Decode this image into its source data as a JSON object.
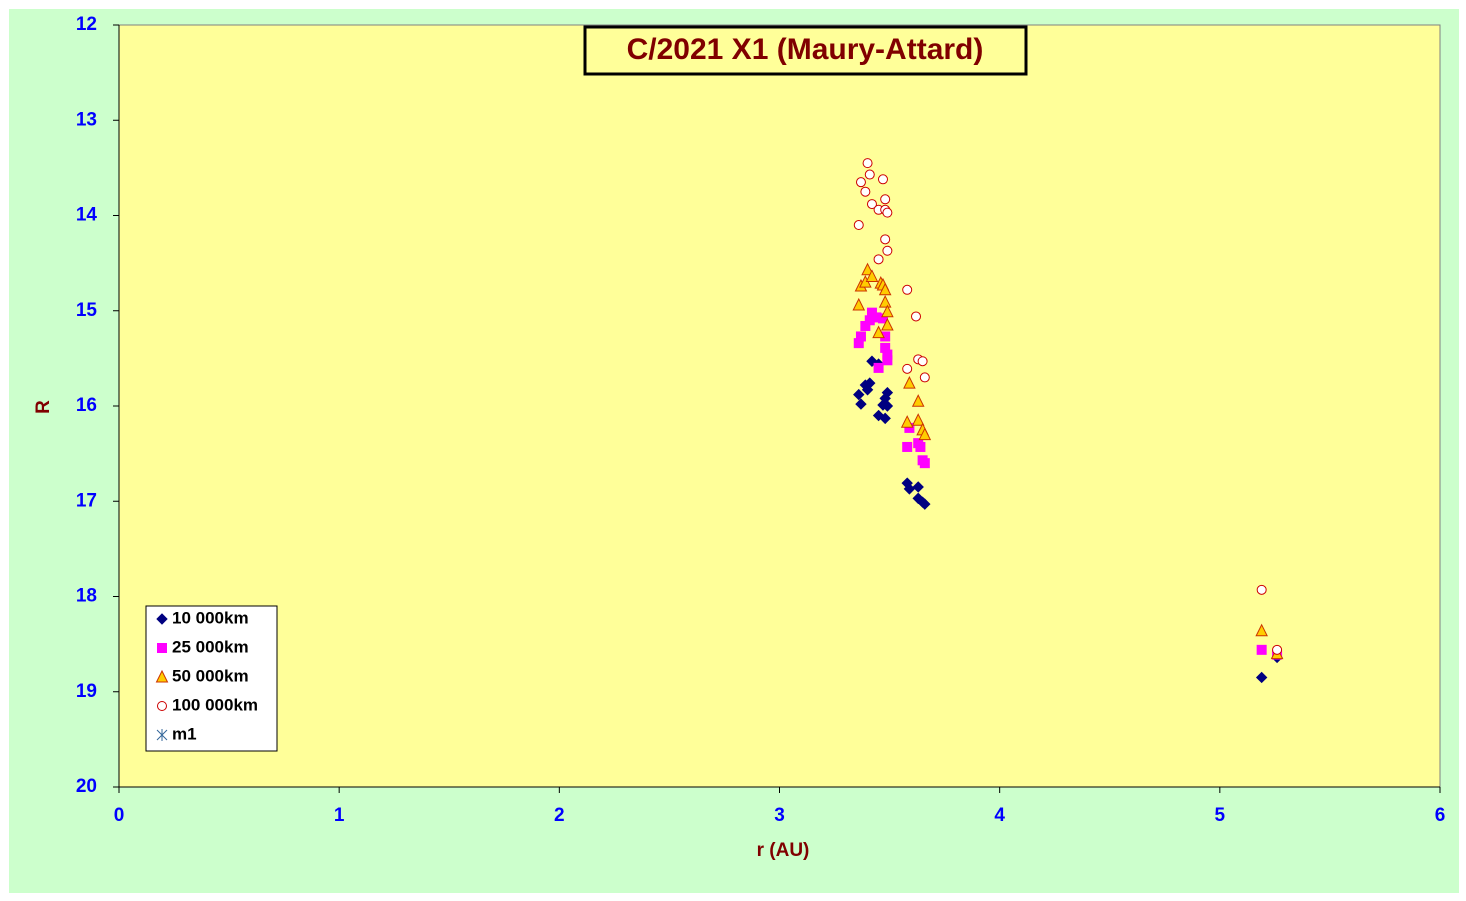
{
  "chart_data": {
    "type": "scatter",
    "title": "C/2021 X1 (Maury-Attard)",
    "x_label": "r (AU)",
    "y_label": "R",
    "xlim": [
      0,
      6
    ],
    "ylim": [
      12,
      20
    ],
    "y_reversed": true,
    "xticks": [
      0,
      1,
      2,
      3,
      4,
      5,
      6
    ],
    "yticks": [
      12,
      13,
      14,
      15,
      16,
      17,
      18,
      19,
      20
    ],
    "grid": false,
    "legend": "lower left",
    "series": [
      {
        "name": "10 000km",
        "marker": "diamond",
        "color": "#000080",
        "edge": "#000080",
        "x": [
          3.36,
          3.37,
          3.39,
          3.41,
          3.4,
          3.42,
          3.45,
          3.45,
          3.47,
          3.48,
          3.49,
          3.48,
          3.49,
          3.58,
          3.59,
          3.63,
          3.63,
          3.65,
          3.66,
          5.19,
          5.26
        ],
        "values": [
          15.88,
          15.98,
          15.78,
          15.76,
          15.83,
          15.53,
          15.56,
          16.1,
          15.99,
          16.13,
          15.86,
          15.92,
          16.0,
          16.81,
          16.87,
          16.85,
          16.97,
          17.01,
          17.03,
          18.85,
          18.64
        ]
      },
      {
        "name": "25 000km",
        "marker": "square",
        "color": "#ff00ff",
        "edge": "#ff00ff",
        "x": [
          3.36,
          3.37,
          3.39,
          3.41,
          3.42,
          3.44,
          3.45,
          3.47,
          3.48,
          3.48,
          3.49,
          3.49,
          3.58,
          3.59,
          3.63,
          3.64,
          3.65,
          3.66,
          5.19,
          5.26
        ],
        "values": [
          15.34,
          15.27,
          15.16,
          15.1,
          15.02,
          15.07,
          15.6,
          15.08,
          15.27,
          15.39,
          15.46,
          15.52,
          16.43,
          16.23,
          16.39,
          16.43,
          16.57,
          16.6,
          18.56,
          18.61
        ]
      },
      {
        "name": "50 000km",
        "marker": "triangle",
        "color": "#ffcc00",
        "edge": "#cc3300",
        "x": [
          3.36,
          3.37,
          3.39,
          3.4,
          3.42,
          3.45,
          3.46,
          3.47,
          3.48,
          3.48,
          3.49,
          3.49,
          3.59,
          3.58,
          3.63,
          3.63,
          3.65,
          3.66,
          5.19,
          5.26
        ],
        "values": [
          14.94,
          14.74,
          14.7,
          14.57,
          14.64,
          15.23,
          14.71,
          14.73,
          14.78,
          14.91,
          15.01,
          15.15,
          15.76,
          16.17,
          15.95,
          16.15,
          16.25,
          16.3,
          18.36,
          18.6
        ]
      },
      {
        "name": "100 000km",
        "marker": "circle",
        "color": "#ffffff",
        "edge": "#cc0000",
        "x": [
          3.36,
          3.37,
          3.39,
          3.4,
          3.41,
          3.42,
          3.45,
          3.47,
          3.48,
          3.48,
          3.49,
          3.45,
          3.48,
          3.49,
          3.58,
          3.62,
          3.63,
          3.65,
          3.58,
          3.66,
          5.19,
          5.26
        ],
        "values": [
          14.1,
          13.65,
          13.75,
          13.45,
          13.57,
          13.88,
          13.94,
          13.62,
          13.94,
          13.83,
          13.97,
          14.46,
          14.25,
          14.37,
          14.78,
          15.06,
          15.51,
          15.53,
          15.61,
          15.7,
          17.93,
          18.56
        ]
      },
      {
        "name": "m1",
        "marker": "star",
        "color": "#336699",
        "edge": "#336699",
        "x": [],
        "values": []
      }
    ]
  }
}
